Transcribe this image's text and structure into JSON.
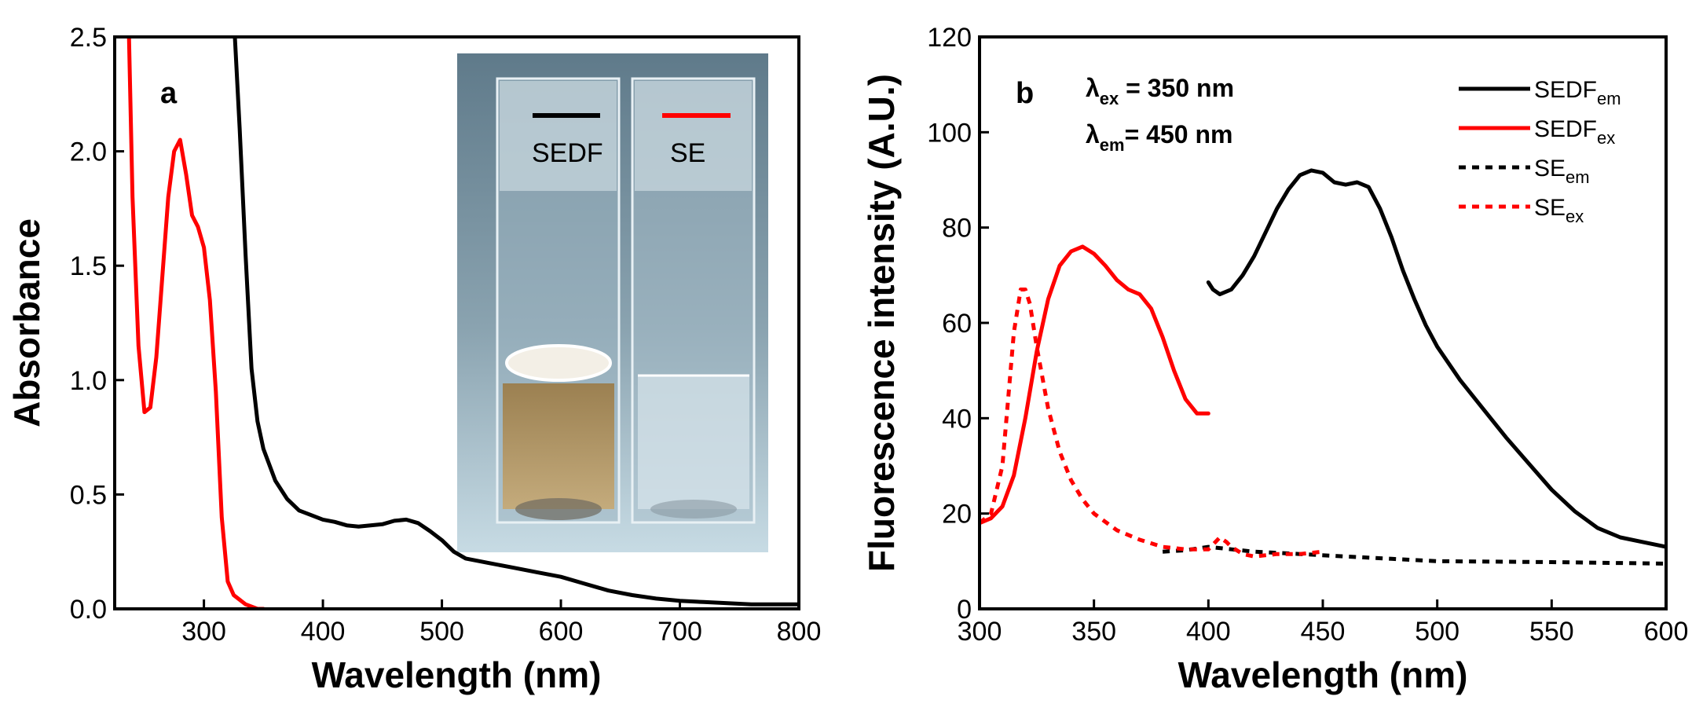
{
  "chart_data": [
    {
      "type": "line",
      "panel_label": "a",
      "xlabel": "Wavelength (nm)",
      "ylabel": "Absorbance",
      "xlim": [
        225,
        800
      ],
      "ylim": [
        0.0,
        2.5
      ],
      "xticks": [
        300,
        400,
        500,
        600,
        700,
        800
      ],
      "yticks": [
        0.0,
        0.5,
        1.0,
        1.5,
        2.0,
        2.5
      ],
      "ytick_labels": [
        "0.0",
        "0.5",
        "1.0",
        "1.5",
        "2.0",
        "2.5"
      ],
      "grid": false,
      "series": [
        {
          "color": "#000000",
          "style": "solid",
          "x": [
            326,
            330,
            335,
            340,
            345,
            350,
            360,
            370,
            380,
            390,
            400,
            410,
            420,
            430,
            440,
            450,
            460,
            470,
            480,
            490,
            500,
            510,
            520,
            540,
            560,
            580,
            600,
            620,
            640,
            660,
            680,
            700,
            720,
            740,
            760,
            780,
            800
          ],
          "y": [
            2.5,
            2.1,
            1.55,
            1.05,
            0.82,
            0.7,
            0.56,
            0.48,
            0.43,
            0.41,
            0.39,
            0.38,
            0.365,
            0.36,
            0.365,
            0.37,
            0.385,
            0.39,
            0.375,
            0.34,
            0.3,
            0.25,
            0.22,
            0.2,
            0.18,
            0.16,
            0.14,
            0.11,
            0.08,
            0.06,
            0.045,
            0.035,
            0.03,
            0.025,
            0.02,
            0.02,
            0.02
          ]
        },
        {
          "color": "#ff0000",
          "style": "solid",
          "x": [
            237,
            240,
            245,
            250,
            255,
            260,
            265,
            270,
            275,
            280,
            285,
            290,
            295,
            300,
            305,
            310,
            315,
            320,
            325,
            330,
            335,
            340,
            345,
            350
          ],
          "y": [
            2.5,
            1.8,
            1.15,
            0.86,
            0.88,
            1.1,
            1.45,
            1.8,
            2.0,
            2.05,
            1.9,
            1.72,
            1.67,
            1.58,
            1.35,
            0.95,
            0.4,
            0.12,
            0.06,
            0.04,
            0.02,
            0.01,
            0.0,
            0.0
          ]
        }
      ],
      "inset": {
        "label_left": "SEDF",
        "label_right": "SE",
        "color_left": "#000000",
        "color_right": "#ff0000",
        "background": "#6d8898",
        "liquid_left": "#b59c6e"
      }
    },
    {
      "type": "line",
      "panel_label": "b",
      "xlabel": "Wavelength (nm)",
      "ylabel": "Fluorescence intensity (A.U.)",
      "xlim": [
        300,
        600
      ],
      "ylim": [
        0,
        120
      ],
      "xticks": [
        300,
        350,
        400,
        450,
        500,
        550,
        600
      ],
      "yticks": [
        0,
        20,
        40,
        60,
        80,
        100,
        120
      ],
      "grid": false,
      "legend_position": "top-right",
      "annotations": [
        {
          "symbol": "λ",
          "sub": "ex",
          "text": " = 350 nm"
        },
        {
          "symbol": "λ",
          "sub": "em",
          "text": "= 450 nm"
        }
      ],
      "series": [
        {
          "name": "SEDF",
          "name_sub": "em",
          "color": "#000000",
          "style": "solid",
          "x": [
            400,
            402,
            405,
            410,
            415,
            420,
            425,
            430,
            435,
            440,
            445,
            450,
            455,
            460,
            465,
            470,
            475,
            480,
            485,
            490,
            495,
            500,
            510,
            520,
            530,
            540,
            550,
            560,
            570,
            580,
            590,
            600
          ],
          "y": [
            68.5,
            67,
            66,
            67,
            70,
            74,
            79,
            84,
            88,
            91,
            92,
            91.5,
            89.5,
            89,
            89.5,
            88.5,
            84,
            78,
            71,
            65,
            59.5,
            55,
            48,
            42,
            36,
            30.5,
            25,
            20.5,
            17,
            15,
            14,
            13
          ]
        },
        {
          "name": "SEDF",
          "name_sub": "ex",
          "color": "#ff0000",
          "style": "solid",
          "x": [
            300,
            305,
            310,
            315,
            320,
            325,
            330,
            335,
            340,
            345,
            350,
            355,
            360,
            365,
            370,
            375,
            380,
            385,
            390,
            395,
            400
          ],
          "y": [
            18,
            19,
            21.5,
            28,
            40,
            54,
            65,
            72,
            75,
            76,
            74.5,
            72,
            69,
            67,
            66,
            63,
            57,
            50,
            44,
            41,
            41
          ]
        },
        {
          "name": "SE",
          "name_sub": "em",
          "color": "#000000",
          "style": "dashed",
          "x": [
            380,
            390,
            400,
            410,
            420,
            440,
            460,
            480,
            500,
            550,
            600
          ],
          "y": [
            12,
            12.3,
            13,
            12.5,
            12,
            11.5,
            11,
            10.5,
            10,
            9.8,
            9.5
          ]
        },
        {
          "name": "SE",
          "name_sub": "ex",
          "color": "#ff0000",
          "style": "dashed",
          "x": [
            300,
            305,
            310,
            315,
            318,
            320,
            322,
            325,
            330,
            335,
            340,
            345,
            350,
            360,
            370,
            380,
            390,
            400,
            403,
            405,
            408,
            410,
            415,
            420,
            430,
            440,
            450
          ],
          "y": [
            18,
            20,
            30,
            58,
            67,
            67,
            64,
            55,
            42,
            33,
            27,
            23,
            20,
            16.5,
            14.5,
            13,
            12.5,
            12.5,
            14,
            15,
            14,
            13,
            11.5,
            11,
            11.5,
            11.5,
            12
          ]
        }
      ]
    }
  ]
}
